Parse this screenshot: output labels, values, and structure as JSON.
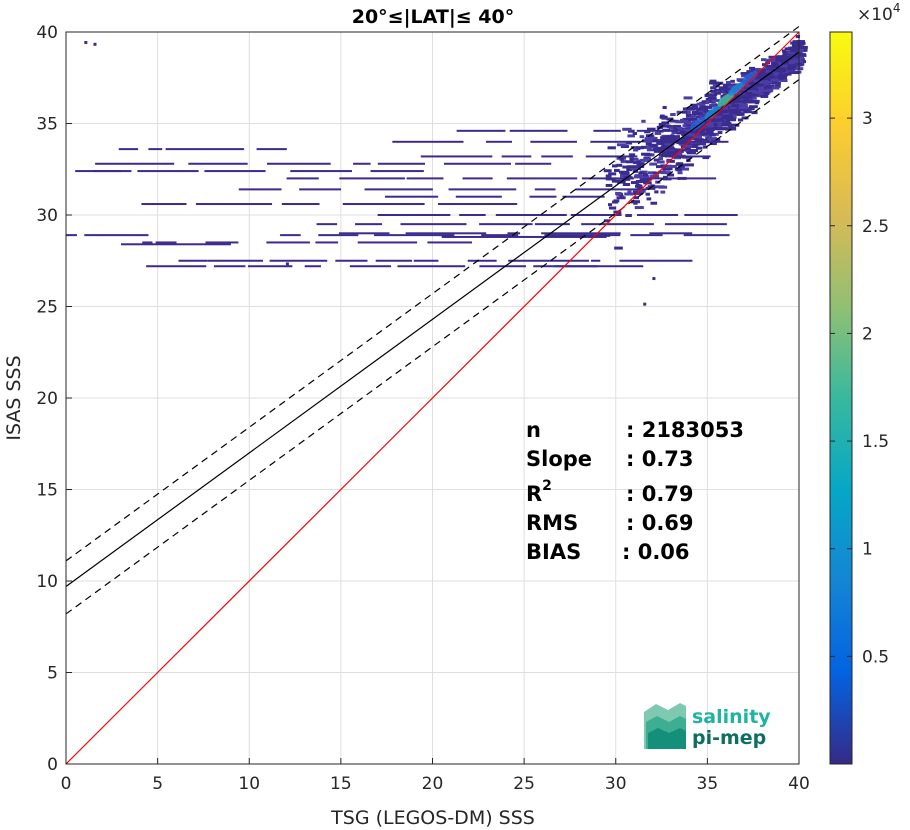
{
  "chart_data": {
    "type": "heatmap",
    "title": "20°≤|LAT|≤ 40°",
    "xlabel": "TSG (LEGOS-DM) SSS",
    "ylabel": "ISAS SSS",
    "xlim": [
      0,
      40
    ],
    "ylim": [
      0,
      40
    ],
    "xticks": [
      "0",
      "5",
      "10",
      "15",
      "20",
      "25",
      "30",
      "35",
      "40"
    ],
    "yticks": [
      "0",
      "5",
      "10",
      "15",
      "20",
      "25",
      "30",
      "35",
      "40"
    ],
    "grid": true,
    "lines": {
      "one_to_one": {
        "color": "#ff0000",
        "points": [
          [
            0,
            0
          ],
          [
            40,
            40
          ]
        ]
      },
      "fit": {
        "color": "#000000",
        "style": "solid",
        "points": [
          [
            0,
            9.7
          ],
          [
            40,
            38.9
          ]
        ]
      },
      "fit_upper": {
        "color": "#000000",
        "style": "dashed",
        "points": [
          [
            0,
            11.1
          ],
          [
            40,
            40.3
          ]
        ]
      },
      "fit_lower": {
        "color": "#000000",
        "style": "dashed",
        "points": [
          [
            0,
            8.2
          ],
          [
            40,
            37.4
          ]
        ]
      }
    },
    "density_core": [
      {
        "x": 34.5,
        "y": 35.0,
        "level": 0.25
      },
      {
        "x": 35.3,
        "y": 35.6,
        "level": 0.45
      },
      {
        "x": 36.0,
        "y": 36.3,
        "level": 0.6
      },
      {
        "x": 36.6,
        "y": 36.9,
        "level": 0.35
      },
      {
        "x": 37.3,
        "y": 37.5,
        "level": 0.2
      }
    ],
    "colorbar": {
      "ticks": [
        "0.5",
        "1",
        "1.5",
        "2",
        "2.5",
        "3"
      ],
      "tick_values": [
        0.5,
        1,
        1.5,
        2,
        2.5,
        3
      ],
      "min": 0,
      "max": 3.4,
      "exponent_label": "×10",
      "exponent": "4",
      "colors": [
        "#352a87",
        "#0363e1",
        "#1485d4",
        "#06a7c6",
        "#38b99e",
        "#92bf73",
        "#d9ba56",
        "#fcce2e",
        "#f9fb0e"
      ]
    },
    "stats": {
      "n": {
        "label": "n",
        "value": ": 2183053"
      },
      "slope": {
        "label": "Slope",
        "value": ": 0.73"
      },
      "r2": {
        "label": "R",
        "sup": "2",
        "value": ": 0.79"
      },
      "rms": {
        "label": "RMS",
        "value": ": 0.69"
      },
      "bias": {
        "label": "BIAS",
        "value": ": 0.06"
      }
    },
    "logo": {
      "line1": "salinity",
      "line2": "pi-mep"
    }
  }
}
